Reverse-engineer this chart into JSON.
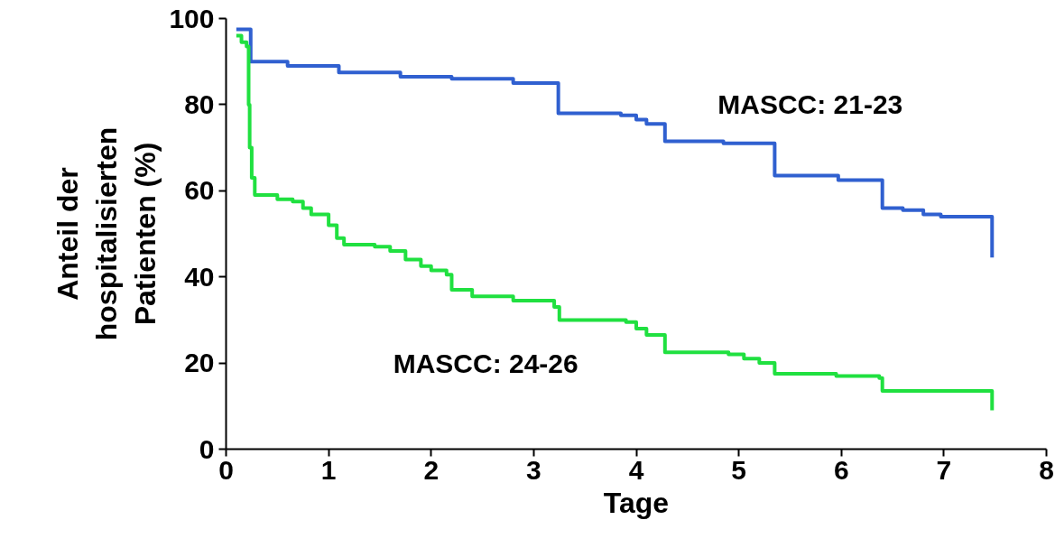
{
  "chart_data": {
    "type": "step",
    "xlabel": "Tage",
    "ylabel": "Anteil der\nhospitalisierten\nPatienten (%)",
    "xlim": [
      0,
      8
    ],
    "ylim": [
      0,
      100
    ],
    "xticks": [
      0,
      1,
      2,
      3,
      4,
      5,
      6,
      7,
      8
    ],
    "yticks": [
      0,
      20,
      40,
      60,
      80,
      100
    ],
    "grid": false,
    "series": [
      {
        "color": "#3060d0",
        "x": [
          0.1,
          0.24,
          0.6,
          1.1,
          1.7,
          2.2,
          2.8,
          3.24,
          3.85,
          4.0,
          4.1,
          4.28,
          4.85,
          5.35,
          5.97,
          6.4,
          6.6,
          6.8,
          6.97,
          7.47,
          7.47
        ],
        "values": [
          97.5,
          90,
          89,
          87.5,
          86.5,
          86,
          85,
          78,
          77.5,
          76.5,
          75.5,
          71.5,
          71,
          63.5,
          62.5,
          56,
          55.5,
          54.5,
          54,
          54,
          44.5
        ]
      },
      {
        "color": "#20e040",
        "x": [
          0.1,
          0.15,
          0.2,
          0.22,
          0.23,
          0.25,
          0.28,
          0.5,
          0.65,
          0.75,
          0.83,
          1.0,
          1.08,
          1.15,
          1.45,
          1.6,
          1.75,
          1.9,
          2.0,
          2.15,
          2.2,
          2.4,
          2.8,
          3.2,
          3.25,
          3.9,
          4.0,
          4.1,
          4.28,
          4.9,
          5.05,
          5.2,
          5.35,
          5.95,
          6.37,
          6.4,
          7.47,
          7.47
        ],
        "values": [
          96,
          94.5,
          93.5,
          80,
          70,
          63,
          59,
          58,
          57.5,
          56,
          54.5,
          52,
          49,
          47.5,
          47,
          46,
          44,
          42.5,
          41.5,
          40.5,
          37,
          35.5,
          34.5,
          33,
          30,
          29.5,
          28,
          26.5,
          22.5,
          22,
          21,
          20,
          17.5,
          17,
          16.5,
          13.5,
          13.5,
          9
        ]
      }
    ],
    "annotations": [
      "MASCC: 21-23",
      "MASCC: 24-26"
    ]
  }
}
